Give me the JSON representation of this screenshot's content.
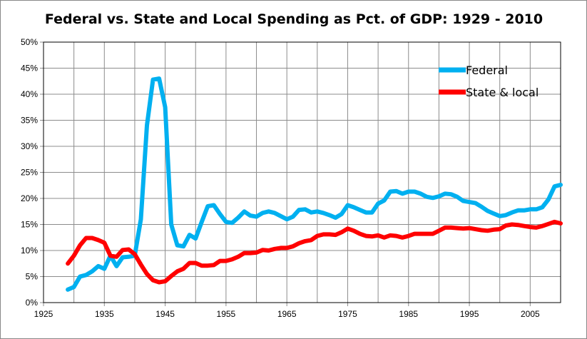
{
  "chart_data": {
    "type": "line",
    "title": "Federal vs. State and Local Spending as Pct. of GDP: 1929 - 2010",
    "xlabel": "",
    "ylabel": "",
    "xlim": [
      1925,
      2010
    ],
    "ylim": [
      0,
      50
    ],
    "x_ticks": [
      "1925",
      "1935",
      "1945",
      "1955",
      "1965",
      "1975",
      "1985",
      "1995",
      "2005"
    ],
    "y_ticks": [
      "0%",
      "5%",
      "10%",
      "15%",
      "20%",
      "25%",
      "30%",
      "35%",
      "40%",
      "45%",
      "50%"
    ],
    "grid": true,
    "legend_position": "top-right",
    "x_start": 1929,
    "series": [
      {
        "name": "Federal",
        "color": "#00b0f0",
        "values": [
          2.5,
          3,
          5,
          5.3,
          6,
          7,
          6.5,
          9,
          7,
          8.7,
          8.8,
          9,
          16,
          34,
          42.8,
          43,
          37.5,
          15,
          11,
          10.8,
          13,
          12.3,
          15.5,
          18.5,
          18.7,
          17,
          15.5,
          15.3,
          16.3,
          17.5,
          16.7,
          16.5,
          17.2,
          17.5,
          17.2,
          16.6,
          16,
          16.5,
          17.8,
          17.9,
          17.3,
          17.5,
          17.2,
          16.8,
          16.3,
          17,
          18.7,
          18.3,
          17.8,
          17.3,
          17.3,
          19,
          19.6,
          21.3,
          21.4,
          20.9,
          21.3,
          21.3,
          20.9,
          20.3,
          20.1,
          20.4,
          20.9,
          20.8,
          20.3,
          19.5,
          19.3,
          19.1,
          18.4,
          17.6,
          17.1,
          16.6,
          16.8,
          17.3,
          17.7,
          17.7,
          17.9,
          17.9,
          18.3,
          19.8,
          22.3,
          22.6
        ]
      },
      {
        "name": "State & local",
        "color": "#ff0000",
        "values": [
          7.5,
          9,
          11,
          12.4,
          12.4,
          12,
          11.5,
          9,
          8.8,
          10.1,
          10.2,
          9.3,
          7.3,
          5.5,
          4.3,
          3.9,
          4.1,
          5.1,
          6,
          6.5,
          7.6,
          7.6,
          7.1,
          7.1,
          7.2,
          8,
          8,
          8.3,
          8.8,
          9.5,
          9.5,
          9.6,
          10.1,
          10,
          10.3,
          10.5,
          10.5,
          10.8,
          11.4,
          11.8,
          12,
          12.8,
          13.1,
          13.1,
          13,
          13.5,
          14.2,
          13.8,
          13.2,
          12.8,
          12.7,
          12.9,
          12.5,
          12.9,
          12.8,
          12.5,
          12.8,
          13.2,
          13.2,
          13.2,
          13.2,
          13.8,
          14.4,
          14.4,
          14.3,
          14.2,
          14.3,
          14.1,
          13.9,
          13.8,
          14,
          14.1,
          14.8,
          15,
          14.9,
          14.7,
          14.5,
          14.4,
          14.7,
          15.1,
          15.5,
          15.2
        ]
      }
    ]
  }
}
